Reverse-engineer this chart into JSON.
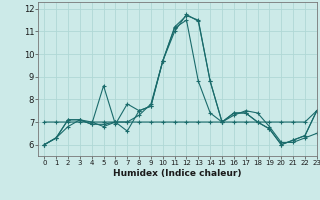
{
  "xlabel": "Humidex (Indice chaleur)",
  "xlim": [
    -0.5,
    23
  ],
  "ylim": [
    5.5,
    12.3
  ],
  "yticks": [
    6,
    7,
    8,
    9,
    10,
    11,
    12
  ],
  "xticks": [
    0,
    1,
    2,
    3,
    4,
    5,
    6,
    7,
    8,
    9,
    10,
    11,
    12,
    13,
    14,
    15,
    16,
    17,
    18,
    19,
    20,
    21,
    22,
    23
  ],
  "background_color": "#cceae8",
  "grid_color": "#b0d8d5",
  "line_color": "#1a6b6b",
  "hours": [
    0,
    1,
    2,
    3,
    4,
    5,
    6,
    7,
    8,
    9,
    10,
    11,
    12,
    13,
    14,
    15,
    16,
    17,
    18,
    19,
    20,
    21,
    22,
    23
  ],
  "series": [
    [
      7.0,
      7.0,
      7.0,
      7.0,
      7.0,
      7.0,
      7.0,
      7.0,
      7.0,
      7.0,
      7.0,
      7.0,
      7.0,
      7.0,
      7.0,
      7.0,
      7.0,
      7.0,
      7.0,
      7.0,
      7.0,
      7.0,
      7.0,
      7.5
    ],
    [
      6.0,
      6.3,
      6.8,
      7.1,
      7.0,
      6.8,
      7.0,
      7.0,
      7.3,
      7.8,
      9.7,
      11.0,
      11.75,
      11.45,
      8.8,
      7.0,
      7.3,
      7.5,
      7.4,
      6.8,
      6.1,
      6.1,
      6.3,
      6.5
    ],
    [
      6.0,
      6.3,
      7.1,
      7.1,
      6.9,
      8.6,
      6.9,
      7.8,
      7.5,
      7.7,
      9.7,
      11.15,
      11.5,
      8.8,
      7.4,
      7.0,
      7.4,
      7.4,
      7.0,
      6.7,
      6.0,
      6.2,
      6.4,
      7.5
    ],
    [
      6.0,
      6.3,
      7.1,
      7.1,
      6.9,
      6.9,
      7.0,
      6.6,
      7.5,
      7.7,
      9.7,
      11.2,
      11.7,
      11.5,
      8.8,
      7.0,
      7.4,
      7.4,
      7.0,
      6.7,
      6.0,
      6.2,
      6.4,
      7.5
    ]
  ]
}
